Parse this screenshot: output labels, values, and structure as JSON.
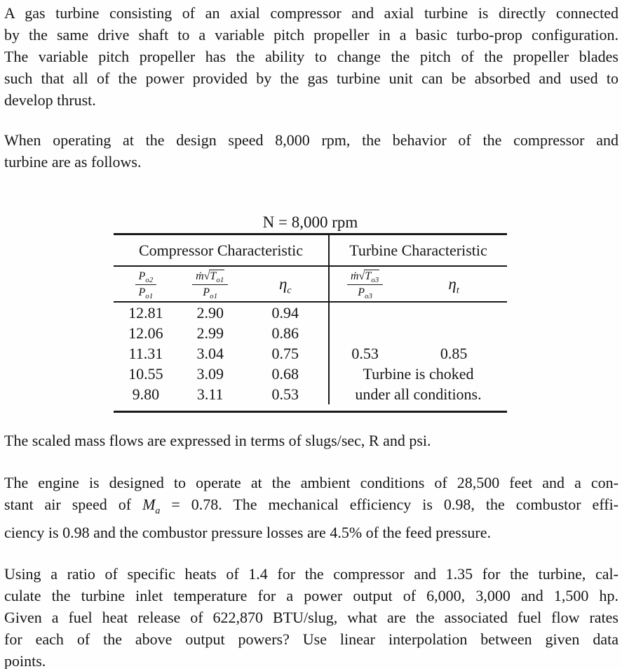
{
  "paragraphs": {
    "p1": {
      "l1": "A gas turbine consisting of an axial compressor and axial turbine is directly connected",
      "l2": "by the same drive shaft to a variable pitch propeller in a basic turbo-prop configuration.",
      "l3": "The variable pitch propeller has the ability to change the pitch of the propeller blades",
      "l4": "such that all of the power provided by the gas turbine unit can be absorbed and used to",
      "l5": "develop thrust."
    },
    "p2": {
      "l1": "When operating at the design speed 8,000 rpm, the behavior of the compressor and",
      "l2": "turbine are as follows."
    },
    "p3": {
      "l1": "The scaled mass flows are expressed in terms of slugs/sec, R and psi."
    },
    "p4": {
      "l1": "The engine is designed to operate at the ambient conditions of 28,500 feet and a con-",
      "l2_pre": "stant air speed of ",
      "l2_math_base": "M",
      "l2_math_sub": "a",
      "l2_post": " = 0.78. The mechanical efficiency is 0.98, the combustor effi-",
      "l3": "ciency is 0.98 and the combustor pressure losses are 4.5% of the feed pressure."
    },
    "p5": {
      "l1": "Using a ratio of specific heats of 1.4 for the compressor and 1.35 for the turbine, cal-",
      "l2": "culate the turbine inlet temperature for a power output of 6,000, 3,000 and 1,500 hp.",
      "l3": "Given a fuel heat release of 622,870 BTU/slug, what are the associated fuel flow rates",
      "l4": "for each of the above output powers? Use linear interpolation between given data",
      "l5": "points."
    }
  },
  "table": {
    "title": "N = 8,000 rpm",
    "section_left": "Compressor Characteristic",
    "section_right": "Turbine Characteristic",
    "cols": {
      "c1": {
        "num_base": "P",
        "num_sub": "o2",
        "den_base": "P",
        "den_sub": "o1"
      },
      "c2": {
        "num_mdot": "ṁ",
        "num_sqrt": "√",
        "num_base": "T",
        "num_sub": "o1",
        "den_base": "P",
        "den_sub": "o1"
      },
      "c3": {
        "base": "η",
        "sub": "c"
      },
      "c4": {
        "num_mdot": "ṁ",
        "num_sqrt": "√",
        "num_base": "T",
        "num_sub": "o3",
        "den_base": "P",
        "den_sub": "o3"
      },
      "c5": {
        "base": "η",
        "sub": "t"
      }
    },
    "compressor_rows": [
      [
        "12.81",
        "2.90",
        "0.94"
      ],
      [
        "12.06",
        "2.99",
        "0.86"
      ],
      [
        "11.31",
        "3.04",
        "0.75"
      ],
      [
        "10.55",
        "3.09",
        "0.68"
      ],
      [
        "9.80",
        "3.11",
        "0.53"
      ]
    ],
    "turbine": {
      "flow": "0.53",
      "eff": "0.85",
      "note1": "Turbine is choked",
      "note2": "under all conditions."
    }
  },
  "chart_data": {
    "type": "table",
    "title": "N = 8,000 rpm",
    "sections": [
      "Compressor Characteristic",
      "Turbine Characteristic"
    ],
    "compressor": {
      "columns": [
        "Po2/Po1",
        "mdot*sqrt(To1)/Po1",
        "eta_c"
      ],
      "rows": [
        [
          12.81,
          2.9,
          0.94
        ],
        [
          12.06,
          2.99,
          0.86
        ],
        [
          11.31,
          3.04,
          0.75
        ],
        [
          10.55,
          3.09,
          0.68
        ],
        [
          9.8,
          3.11,
          0.53
        ]
      ]
    },
    "turbine": {
      "columns": [
        "mdot*sqrt(To3)/Po3",
        "eta_t"
      ],
      "rows": [
        [
          0.53,
          0.85
        ]
      ],
      "note": "Turbine is choked under all conditions."
    }
  }
}
